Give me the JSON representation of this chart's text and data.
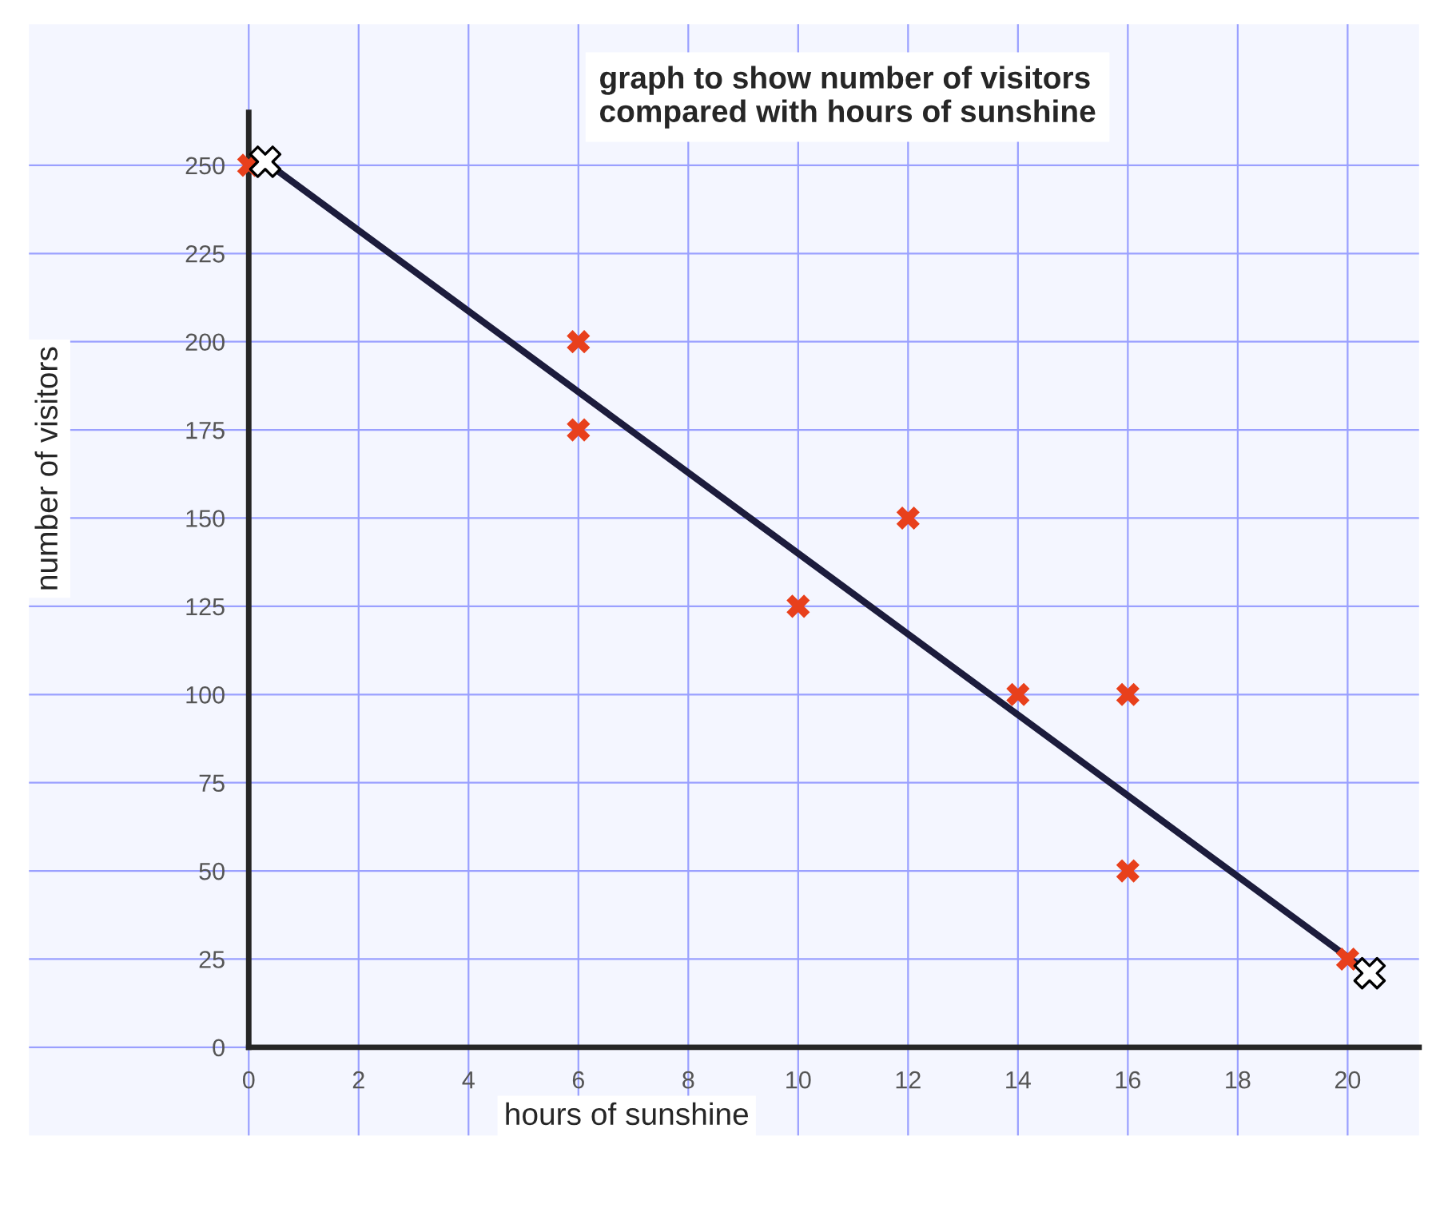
{
  "chart_data": {
    "type": "scatter",
    "title": "graph to show number of visitors\ncompared with hours of sunshine",
    "xlabel": "hours of sunshine",
    "ylabel": "number of visitors",
    "series": [
      {
        "color": "#e8401c",
        "marker": "cross",
        "x": [
          0,
          6,
          6,
          10,
          12,
          14,
          16,
          16,
          20
        ],
        "values": [
          250,
          200,
          175,
          125,
          150,
          100,
          100,
          50,
          25
        ]
      },
      {
        "type": "line",
        "color": "#1c1c3c",
        "marker": "cross",
        "x": [
          0.3,
          20.4
        ],
        "values": [
          251,
          21
        ]
      }
    ],
    "xlim": [
      -4,
      21.3
    ],
    "ylim": [
      -25,
      290
    ],
    "xticks": [
      0,
      2,
      4,
      6,
      8,
      10,
      12,
      14,
      16,
      18,
      20
    ],
    "yticks": [
      0,
      25,
      50,
      75,
      100,
      125,
      150,
      175,
      200,
      225,
      250
    ],
    "grid": true
  }
}
